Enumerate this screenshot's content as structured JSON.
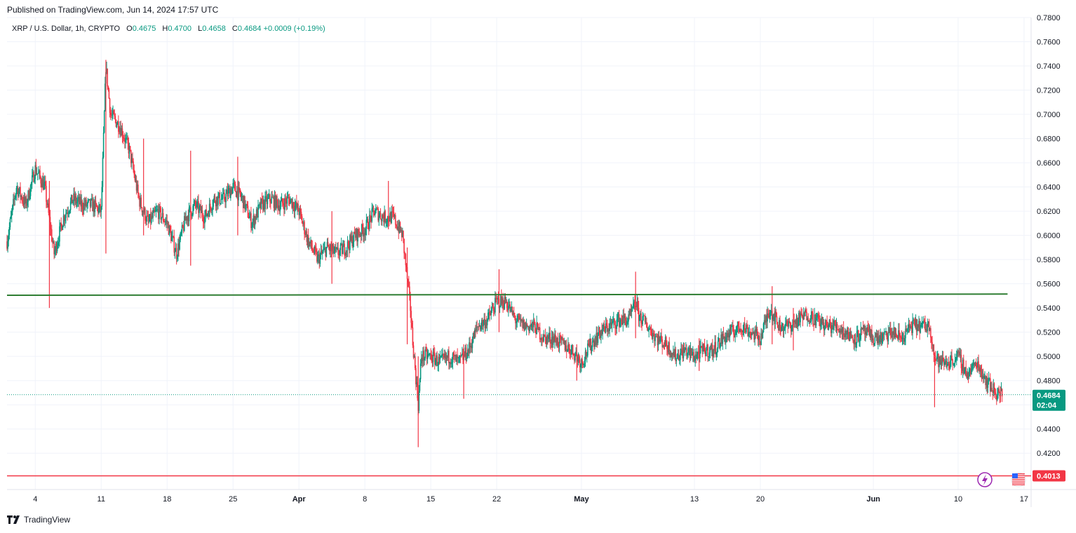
{
  "published": "Published on TradingView.com, Jun 14, 2024 17:57 UTC",
  "legend": {
    "symbol": "XRP / U.S. Dollar, 1h, CRYPTO",
    "open_label": "O",
    "open": "0.4675",
    "high_label": "H",
    "high": "0.4700",
    "low_label": "L",
    "low": "0.4658",
    "close_label": "C",
    "close": "0.4684",
    "change": "+0.0009 (+0.19%)"
  },
  "brand": "TradingView",
  "colors": {
    "up": "#089981",
    "down": "#f23645",
    "resistance": "#2e7d32",
    "support": "#f23645",
    "grid": "#f0f3fa",
    "price_badge": "#089981"
  },
  "icons": [
    "lightning-icon",
    "us-flag-icon",
    "tradingview-logo-icon"
  ],
  "chart_data": {
    "type": "candlestick",
    "ylim": [
      0.39,
      0.78
    ],
    "y_ticks": [
      "0.7800",
      "0.7600",
      "0.7400",
      "0.7200",
      "0.7000",
      "0.6800",
      "0.6600",
      "0.6400",
      "0.6200",
      "0.6000",
      "0.5800",
      "0.5600",
      "0.5400",
      "0.5200",
      "0.5000",
      "0.4800",
      "0.4600",
      "0.4400",
      "0.4200"
    ],
    "x_ticks": [
      "4",
      "11",
      "18",
      "25",
      "Apr",
      "8",
      "15",
      "22",
      "May",
      "13",
      "20",
      "Jun",
      "10",
      "17"
    ],
    "x_ticks_bold": [
      "Apr",
      "May",
      "Jun"
    ],
    "path": [
      [
        "2024-03-01",
        0.595
      ],
      [
        "2024-03-02",
        0.64
      ],
      [
        "2024-03-03",
        0.625
      ],
      [
        "2024-03-04",
        0.655
      ],
      [
        "2024-03-05",
        0.64
      ],
      [
        "2024-03-06",
        0.585
      ],
      [
        "2024-03-07",
        0.615
      ],
      [
        "2024-03-08",
        0.63
      ],
      [
        "2024-03-09",
        0.625
      ],
      [
        "2024-03-10",
        0.625
      ],
      [
        "2024-03-11",
        0.62
      ],
      [
        "2024-03-11T12",
        0.74
      ],
      [
        "2024-03-12",
        0.7
      ],
      [
        "2024-03-13",
        0.69
      ],
      [
        "2024-03-14",
        0.67
      ],
      [
        "2024-03-15",
        0.63
      ],
      [
        "2024-03-16",
        0.61
      ],
      [
        "2024-03-17",
        0.62
      ],
      [
        "2024-03-18",
        0.61
      ],
      [
        "2024-03-19",
        0.585
      ],
      [
        "2024-03-20",
        0.615
      ],
      [
        "2024-03-21",
        0.625
      ],
      [
        "2024-03-22",
        0.615
      ],
      [
        "2024-03-23",
        0.63
      ],
      [
        "2024-03-24",
        0.63
      ],
      [
        "2024-03-25",
        0.64
      ],
      [
        "2024-03-26",
        0.63
      ],
      [
        "2024-03-27",
        0.61
      ],
      [
        "2024-03-28",
        0.625
      ],
      [
        "2024-03-29",
        0.63
      ],
      [
        "2024-03-30",
        0.625
      ],
      [
        "2024-03-31",
        0.63
      ],
      [
        "2024-04-01",
        0.62
      ],
      [
        "2024-04-02",
        0.595
      ],
      [
        "2024-04-03",
        0.58
      ],
      [
        "2024-04-04",
        0.59
      ],
      [
        "2024-04-05",
        0.585
      ],
      [
        "2024-04-06",
        0.59
      ],
      [
        "2024-04-07",
        0.6
      ],
      [
        "2024-04-08",
        0.605
      ],
      [
        "2024-04-09",
        0.62
      ],
      [
        "2024-04-10",
        0.615
      ],
      [
        "2024-04-11",
        0.615
      ],
      [
        "2024-04-12",
        0.6
      ],
      [
        "2024-04-12T20",
        0.54
      ],
      [
        "2024-04-13",
        0.52
      ],
      [
        "2024-04-13T16",
        0.46
      ],
      [
        "2024-04-14",
        0.5
      ],
      [
        "2024-04-15",
        0.5
      ],
      [
        "2024-04-16",
        0.495
      ],
      [
        "2024-04-17",
        0.5
      ],
      [
        "2024-04-18",
        0.495
      ],
      [
        "2024-04-19",
        0.505
      ],
      [
        "2024-04-20",
        0.525
      ],
      [
        "2024-04-21",
        0.53
      ],
      [
        "2024-04-22",
        0.545
      ],
      [
        "2024-04-23",
        0.545
      ],
      [
        "2024-04-24",
        0.53
      ],
      [
        "2024-04-25",
        0.525
      ],
      [
        "2024-04-26",
        0.525
      ],
      [
        "2024-04-27",
        0.515
      ],
      [
        "2024-04-28",
        0.515
      ],
      [
        "2024-04-29",
        0.51
      ],
      [
        "2024-04-30",
        0.505
      ],
      [
        "2024-05-01",
        0.495
      ],
      [
        "2024-05-02",
        0.51
      ],
      [
        "2024-05-03",
        0.52
      ],
      [
        "2024-05-04",
        0.525
      ],
      [
        "2024-05-05",
        0.53
      ],
      [
        "2024-05-06",
        0.53
      ],
      [
        "2024-05-06T20",
        0.545
      ],
      [
        "2024-05-07",
        0.535
      ],
      [
        "2024-05-08",
        0.525
      ],
      [
        "2024-05-09",
        0.515
      ],
      [
        "2024-05-10",
        0.51
      ],
      [
        "2024-05-11",
        0.5
      ],
      [
        "2024-05-12",
        0.505
      ],
      [
        "2024-05-13",
        0.5
      ],
      [
        "2024-05-14",
        0.505
      ],
      [
        "2024-05-15",
        0.505
      ],
      [
        "2024-05-16",
        0.515
      ],
      [
        "2024-05-17",
        0.52
      ],
      [
        "2024-05-18",
        0.525
      ],
      [
        "2024-05-19",
        0.52
      ],
      [
        "2024-05-20",
        0.515
      ],
      [
        "2024-05-21",
        0.54
      ],
      [
        "2024-05-22",
        0.525
      ],
      [
        "2024-05-23",
        0.525
      ],
      [
        "2024-05-24",
        0.53
      ],
      [
        "2024-05-25",
        0.535
      ],
      [
        "2024-05-26",
        0.53
      ],
      [
        "2024-05-27",
        0.525
      ],
      [
        "2024-05-28",
        0.525
      ],
      [
        "2024-05-29",
        0.52
      ],
      [
        "2024-05-30",
        0.515
      ],
      [
        "2024-05-31",
        0.52
      ],
      [
        "2024-06-01",
        0.515
      ],
      [
        "2024-06-02",
        0.515
      ],
      [
        "2024-06-03",
        0.52
      ],
      [
        "2024-06-04",
        0.515
      ],
      [
        "2024-06-05",
        0.525
      ],
      [
        "2024-06-06",
        0.525
      ],
      [
        "2024-06-07",
        0.525
      ],
      [
        "2024-06-07T12",
        0.5
      ],
      [
        "2024-06-08",
        0.495
      ],
      [
        "2024-06-09",
        0.495
      ],
      [
        "2024-06-10",
        0.5
      ],
      [
        "2024-06-11",
        0.485
      ],
      [
        "2024-06-12",
        0.495
      ],
      [
        "2024-06-13",
        0.48
      ],
      [
        "2024-06-14",
        0.47
      ],
      [
        "2024-06-14T17",
        0.4684
      ]
    ],
    "spikes": [
      [
        "2024-03-05T12",
        0.54,
        0.645
      ],
      [
        "2024-03-11T12",
        0.585,
        0.745
      ],
      [
        "2024-03-15T12",
        0.6,
        0.68
      ],
      [
        "2024-03-20T12",
        0.575,
        0.67
      ],
      [
        "2024-03-25T12",
        0.6,
        0.665
      ],
      [
        "2024-04-04T12",
        0.56,
        0.62
      ],
      [
        "2024-04-10T12",
        0.605,
        0.645
      ],
      [
        "2024-04-12T12",
        0.51,
        0.59
      ],
      [
        "2024-04-13T16",
        0.425,
        0.5
      ],
      [
        "2024-04-18T12",
        0.465,
        0.51
      ],
      [
        "2024-04-22T06",
        0.52,
        0.572
      ],
      [
        "2024-04-30T12",
        0.48,
        0.51
      ],
      [
        "2024-05-06T18",
        0.515,
        0.57
      ],
      [
        "2024-05-13T12",
        0.488,
        0.515
      ],
      [
        "2024-05-21T06",
        0.51,
        0.558
      ],
      [
        "2024-05-23T12",
        0.505,
        0.54
      ],
      [
        "2024-06-07T12",
        0.458,
        0.5
      ],
      [
        "2024-06-14T12",
        0.462,
        0.475
      ]
    ],
    "resistance_line": [
      [
        "2024-03-01",
        0.5505
      ],
      [
        "2024-06-15T06",
        0.5515
      ]
    ],
    "support_line": 0.4013,
    "last_price": "0.4684",
    "last_price_value": 0.4684,
    "countdown": "02:04",
    "support_label": "0.4013",
    "x_range": [
      "2024-03-01",
      "2024-06-17T18"
    ]
  }
}
